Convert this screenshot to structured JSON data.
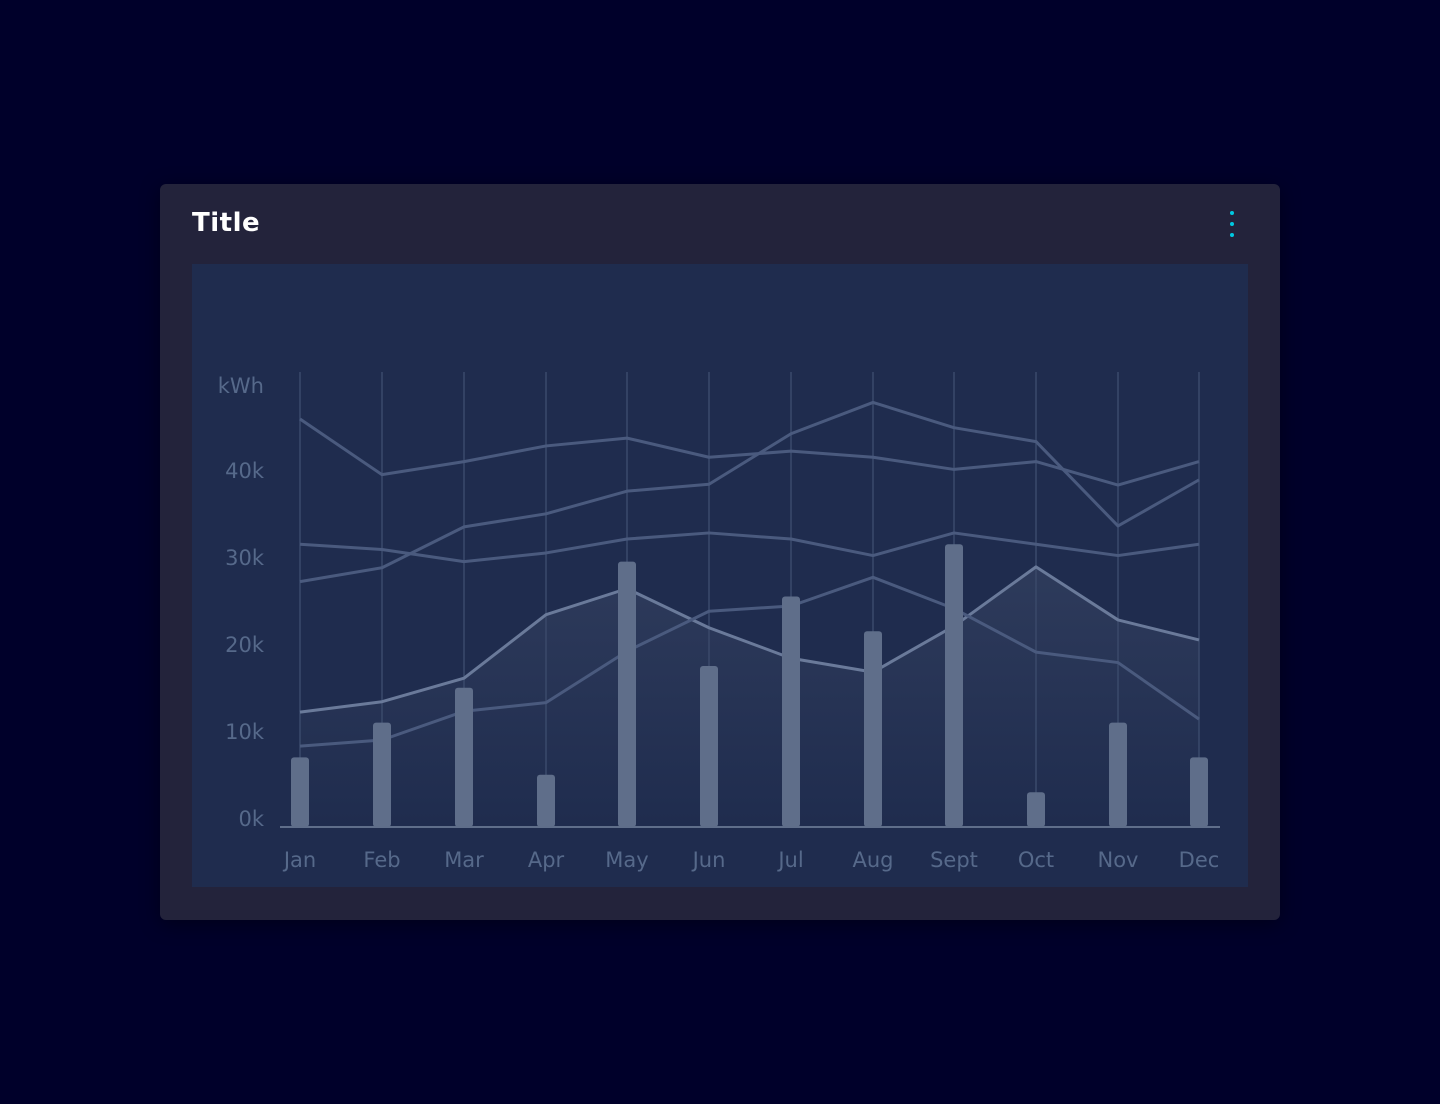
{
  "card": {
    "title": "Title",
    "menu_icon": "more-vertical-icon"
  },
  "colors": {
    "background": "#00002a",
    "card": "#23233b",
    "plot": "#1f2c4e",
    "accent": "#00c8e0",
    "bar": "#5f6e8a",
    "line": "#4a5a7e",
    "highlight_line": "#6a7a9a"
  },
  "chart_data": {
    "type": "bar+line",
    "title": "",
    "ylabel": "kWh",
    "xlabel": "",
    "categories": [
      "Jan",
      "Feb",
      "Mar",
      "Apr",
      "May",
      "Jun",
      "Jul",
      "Aug",
      "Sept",
      "Oct",
      "Nov",
      "Dec"
    ],
    "ylim": [
      0,
      50000
    ],
    "yticks": [
      0,
      10000,
      20000,
      30000,
      40000
    ],
    "ytick_labels": [
      "0k",
      "10k",
      "20k",
      "30k",
      "40k"
    ],
    "grid": "vertical",
    "bars": [
      8000,
      12000,
      16000,
      6000,
      30500,
      18500,
      26500,
      22500,
      32500,
      4000,
      12000,
      8000
    ],
    "lines": [
      {
        "values": [
          46900,
          40500,
          42000,
          43800,
          44700,
          42500,
          43200,
          42500,
          41100,
          42000,
          39300,
          42000
        ]
      },
      {
        "values": [
          28200,
          29800,
          34500,
          36000,
          38600,
          39400,
          45200,
          48800,
          45900,
          44300,
          34600,
          39900
        ]
      },
      {
        "values": [
          32500,
          31900,
          30500,
          31500,
          33100,
          33800,
          33100,
          31200,
          33800,
          32500,
          31200,
          32500
        ]
      },
      {
        "values": [
          13200,
          14400,
          17100,
          24400,
          27400,
          22900,
          19400,
          17800,
          23100,
          29900,
          23800,
          21500
        ],
        "highlighted": true,
        "area": true
      },
      {
        "values": [
          9300,
          10000,
          13300,
          14300,
          20200,
          24800,
          25400,
          28700,
          25100,
          20100,
          18900,
          12400
        ]
      }
    ]
  }
}
